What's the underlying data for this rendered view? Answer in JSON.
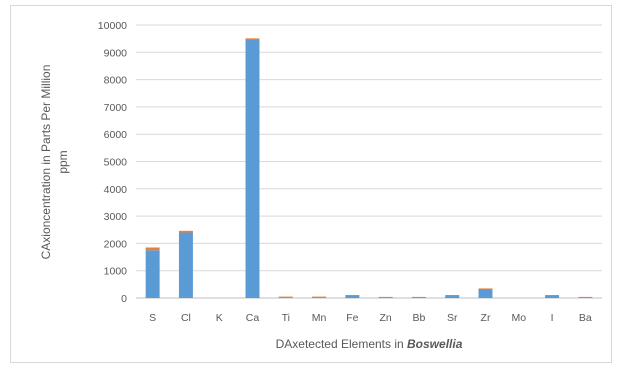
{
  "chart_data": {
    "type": "bar",
    "title": "",
    "xlabel": "DAxetected Elements in ",
    "xlabel_emphasis": "Boswellia",
    "ylabel_line1": "CAxioncentration in Parts Per Million",
    "ylabel_line2": "ppm",
    "ylim": [
      0,
      10000
    ],
    "yticks": [
      "0",
      "1000",
      "2000",
      "3000",
      "4000",
      "5000",
      "6000",
      "7000",
      "8000",
      "9000",
      "10000"
    ],
    "grid": true,
    "categories": [
      "S",
      "Cl",
      "K",
      "Ca",
      "Ti",
      "Mn",
      "Fe",
      "Zn",
      "Bb",
      "Sr",
      "Zr",
      "Mo",
      "I",
      "Ba"
    ],
    "series": [
      {
        "color": "#5b9bd5",
        "values": [
          1750,
          2400,
          0,
          9450,
          0,
          0,
          90,
          0,
          0,
          90,
          330,
          0,
          90,
          0
        ]
      },
      {
        "color": "#ed7d31",
        "values": [
          100,
          60,
          0,
          60,
          50,
          50,
          20,
          40,
          40,
          20,
          20,
          0,
          20,
          40
        ]
      }
    ],
    "colors": {
      "primary": "#5b9bd5",
      "secondary": "#ed7d31",
      "grid": "#d9d9d9",
      "text": "#595959"
    }
  }
}
